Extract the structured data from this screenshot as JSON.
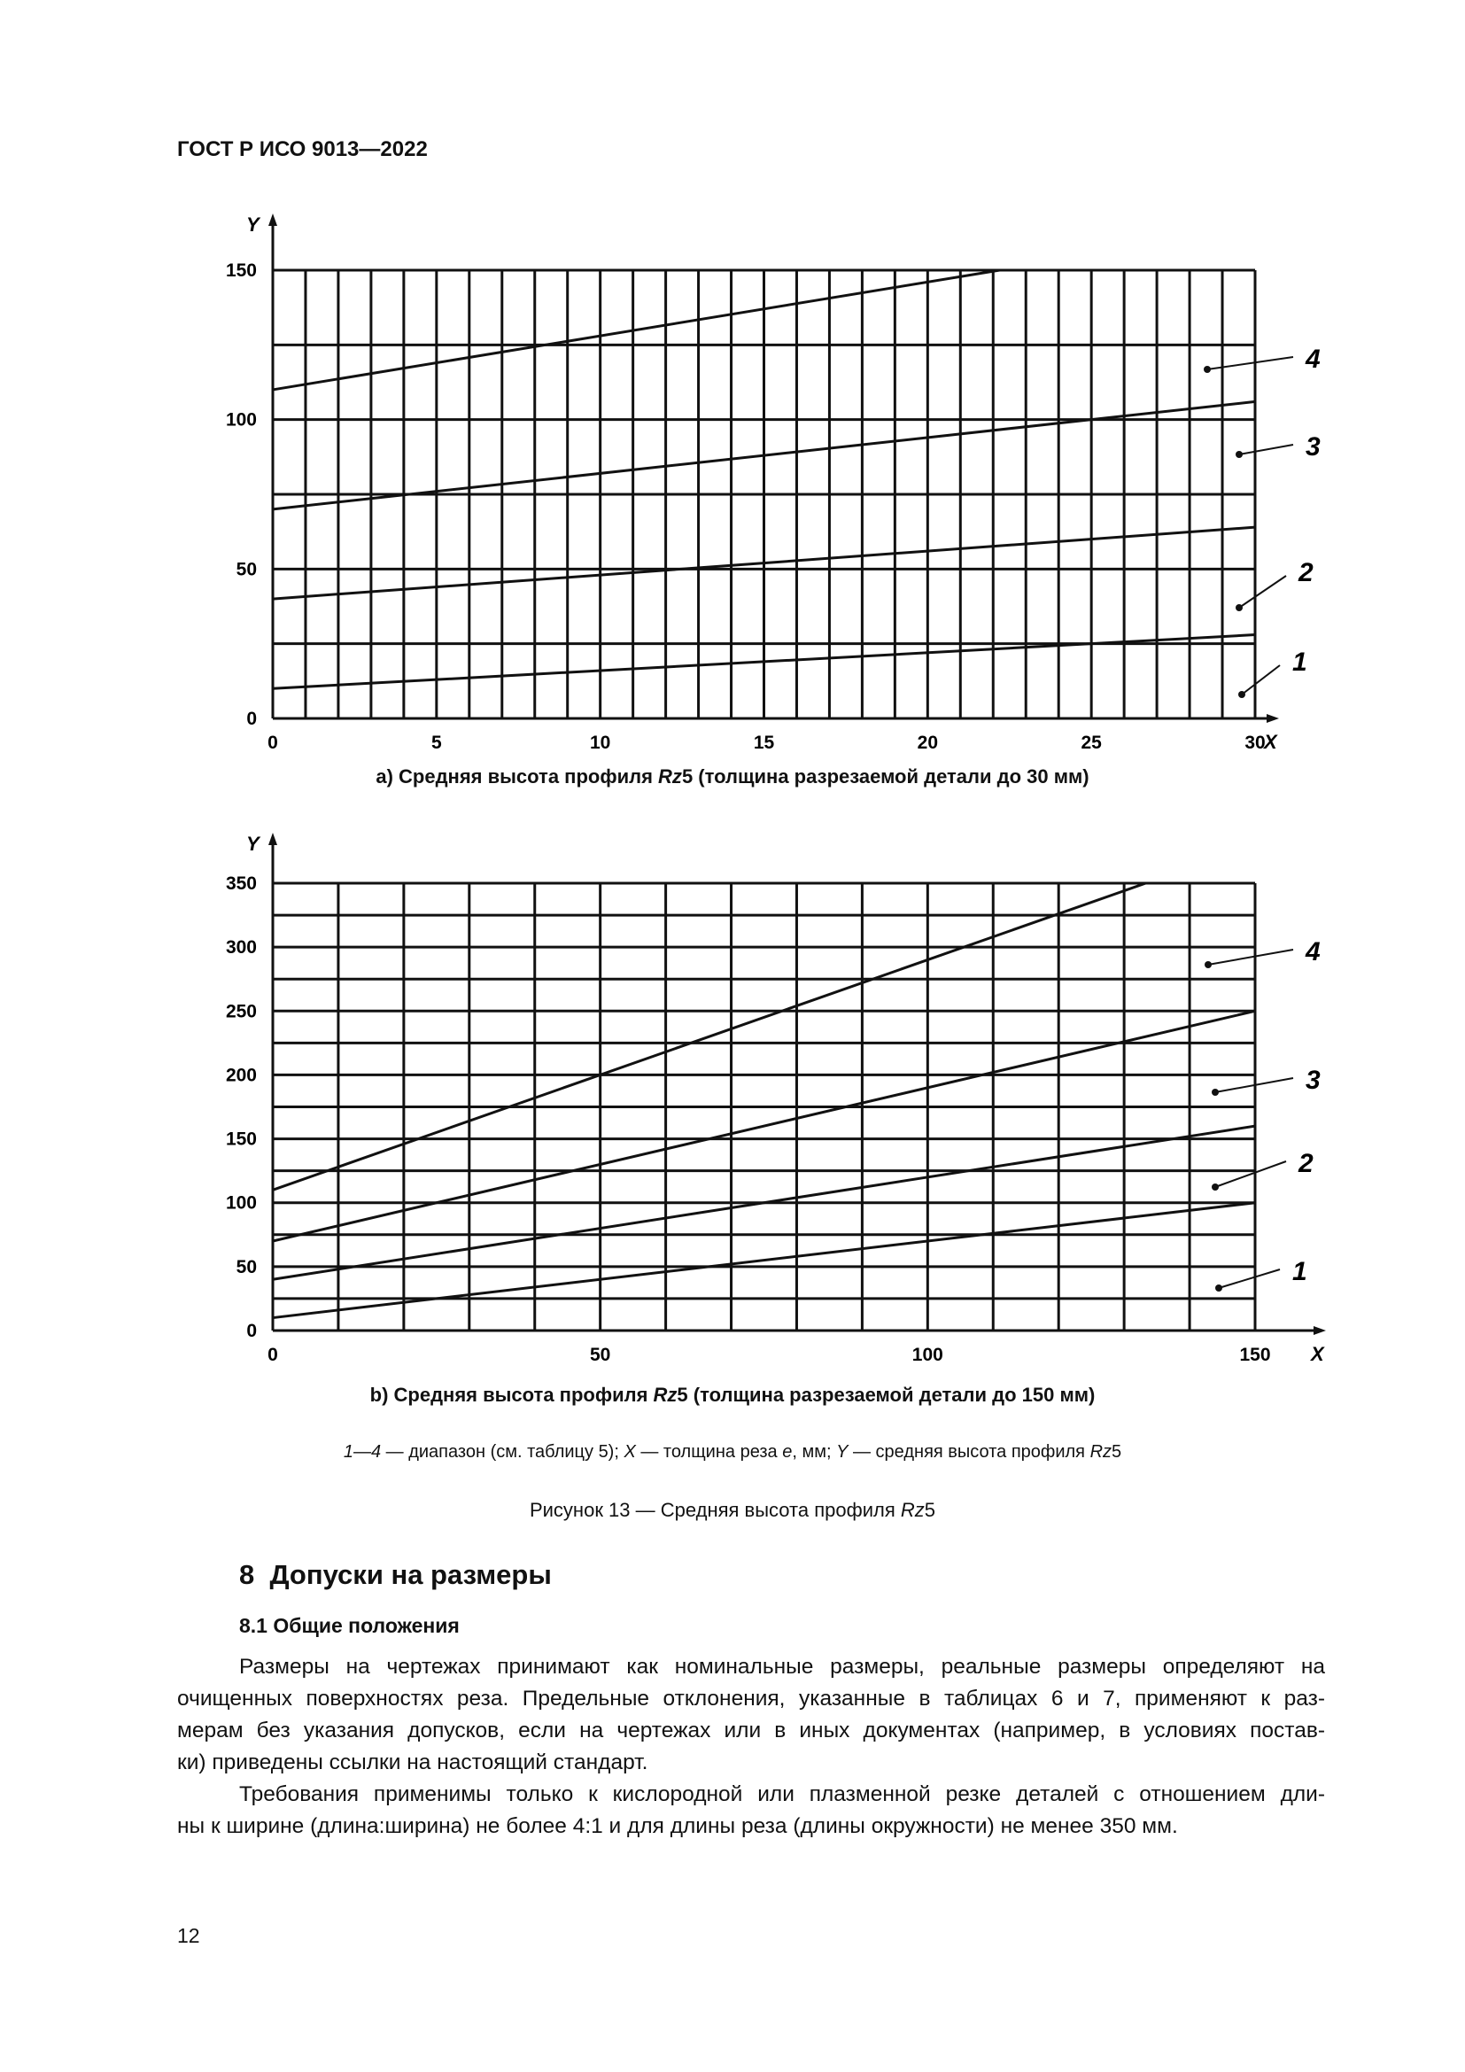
{
  "header": {
    "doc_code": "ГОСТ Р ИСО 9013—2022"
  },
  "chart_data": [
    {
      "type": "line",
      "title": "а) Средняя высота профиля Rz5 (толщина разрезаемой детали до 30 мм)",
      "caption_prefix": "а) Средняя высота профиля ",
      "caption_italic": "Rz",
      "caption_suffix": "5 (толщина разрезаемой детали до 30 мм)",
      "xlabel": "X",
      "ylabel": "Y",
      "xlim": [
        0,
        30
      ],
      "ylim": [
        0,
        150
      ],
      "xticks": [
        0,
        5,
        10,
        15,
        20,
        25,
        30
      ],
      "yticks": [
        0,
        50,
        100,
        150
      ],
      "grid": {
        "x_step": 1,
        "y_step": 25
      },
      "series": [
        {
          "name": "1",
          "x": [
            0,
            30
          ],
          "y": [
            10,
            28
          ]
        },
        {
          "name": "2",
          "x": [
            0,
            30
          ],
          "y": [
            40,
            64
          ]
        },
        {
          "name": "3",
          "x": [
            0,
            30
          ],
          "y": [
            70,
            106
          ]
        },
        {
          "name": "4",
          "x": [
            0,
            22.2
          ],
          "y": [
            110,
            150
          ]
        }
      ]
    },
    {
      "type": "line",
      "title": "b) Средняя высота профиля Rz5 (толщина разрезаемой детали до 150 мм)",
      "caption_prefix": "b) Средняя высота профиля ",
      "caption_italic": "Rz",
      "caption_suffix": "5 (толщина разрезаемой детали до 150 мм)",
      "xlabel": "X",
      "ylabel": "Y",
      "xlim": [
        0,
        150
      ],
      "ylim": [
        0,
        350
      ],
      "xticks": [
        0,
        50,
        100,
        150
      ],
      "yticks": [
        0,
        50,
        100,
        150,
        200,
        250,
        300,
        350
      ],
      "grid": {
        "x_step": 10,
        "y_step": 25
      },
      "series": [
        {
          "name": "1",
          "x": [
            0,
            150
          ],
          "y": [
            10,
            100
          ]
        },
        {
          "name": "2",
          "x": [
            0,
            150
          ],
          "y": [
            40,
            160
          ]
        },
        {
          "name": "3",
          "x": [
            0,
            150
          ],
          "y": [
            70,
            250
          ]
        },
        {
          "name": "4",
          "x": [
            0,
            133.3
          ],
          "y": [
            110,
            350
          ]
        }
      ]
    }
  ],
  "figure": {
    "legend_p1": "1—4",
    "legend_p2": " — диапазон (см. таблицу 5); ",
    "legend_p3": "X",
    "legend_p4": " — толщина реза ",
    "legend_p5": "e",
    "legend_p6": ", мм; ",
    "legend_p7": "Y",
    "legend_p8": " — средняя высота профиля ",
    "legend_p9": "Rz",
    "legend_p10": "5",
    "title_prefix": "Рисунок 13 — Средняя высота профиля ",
    "title_italic": "Rz",
    "title_suffix": "5"
  },
  "section": {
    "heading": "8  Допуски на размеры",
    "subheading": "8.1 Общие положения",
    "paragraph1_lines": [
      "Размеры на чертежах принимают как номинальные размеры, реальные размеры определяют на",
      "очищенных поверхностях реза. Предельные отклонения, указанные в таблицах 6 и 7, применяют к раз-",
      "мерам без указания допусков, если на чертежах или в иных документах (например, в условиях постав-",
      "ки) приведены ссылки на настоящий стандарт."
    ],
    "paragraph2_lines": [
      "Требования применимы только к кислородной или плазменной резке деталей с отношением дли-",
      "ны к ширине (длина:ширина) не более 4:1 и для длины реза (длины окружности) не менее 350 мм."
    ]
  },
  "page_number": "12"
}
